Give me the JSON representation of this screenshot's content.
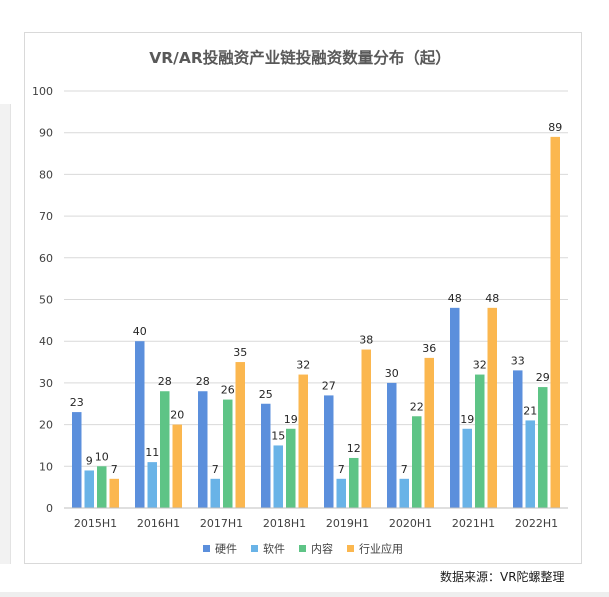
{
  "chart_data": {
    "type": "bar",
    "title": "VR/AR投融资产业链投融资数量分布（起）",
    "xlabel": "",
    "ylabel": "",
    "categories": [
      "2015H1",
      "2016H1",
      "2017H1",
      "2018H1",
      "2019H1",
      "2020H1",
      "2021H1",
      "2022H1"
    ],
    "series": [
      {
        "name": "硬件",
        "color": "#5b8fdc",
        "values": [
          23,
          40,
          28,
          25,
          27,
          30,
          48,
          33
        ]
      },
      {
        "name": "软件",
        "color": "#69b3e7",
        "values": [
          9,
          11,
          7,
          15,
          7,
          7,
          19,
          21
        ]
      },
      {
        "name": "内容",
        "color": "#5ec486",
        "values": [
          10,
          28,
          26,
          19,
          12,
          22,
          32,
          29
        ]
      },
      {
        "name": "行业应用",
        "color": "#fbb74f",
        "values": [
          7,
          20,
          35,
          32,
          38,
          36,
          48,
          89
        ]
      }
    ],
    "ylim": [
      0,
      100
    ],
    "yticks": [
      0,
      10,
      20,
      30,
      40,
      50,
      60,
      70,
      80,
      90,
      100
    ],
    "grid": true,
    "legend_position": "bottom"
  },
  "source_note": "数据来源：VR陀螺整理"
}
